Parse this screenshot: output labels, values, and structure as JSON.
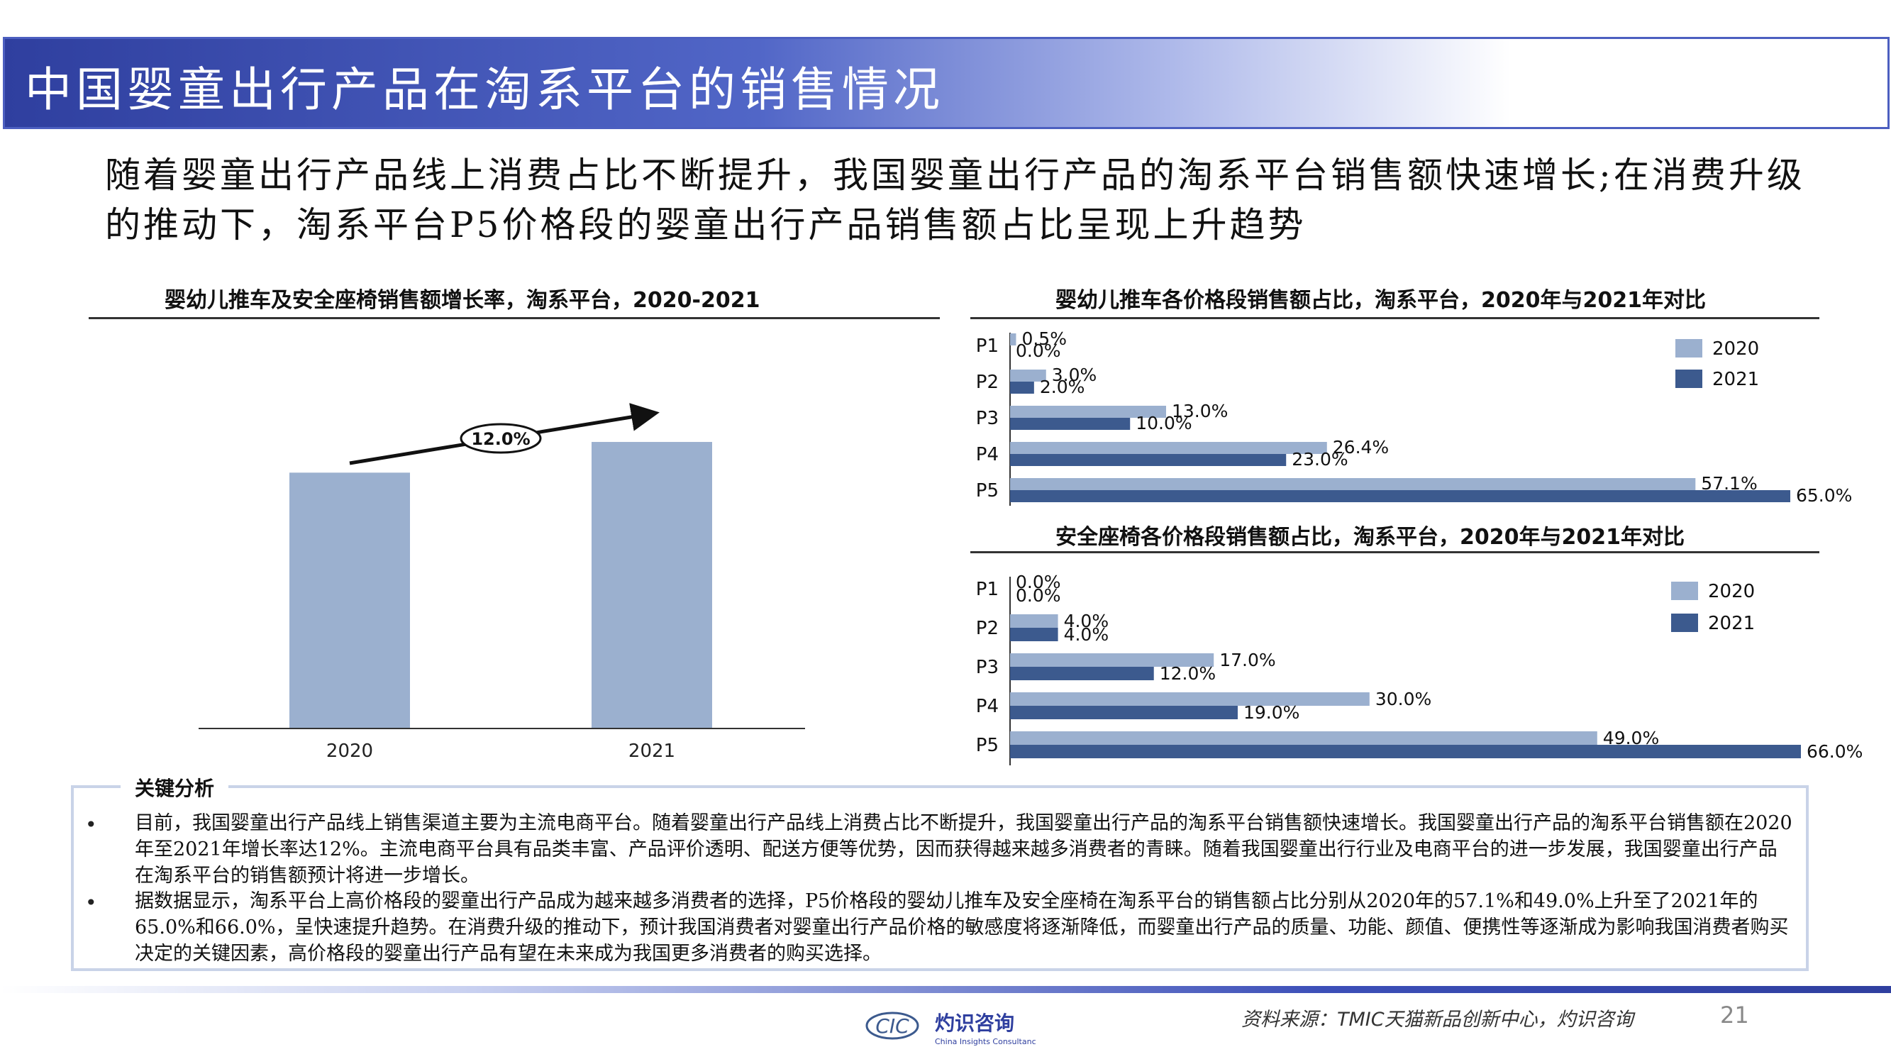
{
  "header": {
    "title": "中国婴童出行产品在淘系平台的销售情况"
  },
  "subtitle": "随着婴童出行产品线上消费占比不断提升，我国婴童出行产品的淘系平台销售额快速增长;在消费升级的推动下，淘系平台P5价格段的婴童出行产品销售额占比呈现上升趋势",
  "chart_data": [
    {
      "type": "bar",
      "title": "婴幼儿推车及安全座椅销售额增长率，淘系平台，2020-2021",
      "categories": [
        "2020",
        "2021"
      ],
      "values": [
        100,
        112
      ],
      "annotation": "12.0%",
      "color": "#9bb0cf",
      "grid": false
    },
    {
      "type": "bar",
      "orientation": "horizontal",
      "title": "婴幼儿推车各价格段销售额占比，淘系平台，2020年与2021年对比",
      "categories": [
        "P1",
        "P2",
        "P3",
        "P4",
        "P5"
      ],
      "series": [
        {
          "name": "2020",
          "values": [
            0.5,
            3.0,
            13.0,
            26.4,
            57.1
          ],
          "labels": [
            "0.5%",
            "3.0%",
            "13.0%",
            "26.4%",
            "57.1%"
          ],
          "color": "#9bb0cf"
        },
        {
          "name": "2021",
          "values": [
            0.0,
            2.0,
            10.0,
            23.0,
            65.0
          ],
          "labels": [
            "0.0%",
            "2.0%",
            "10.0%",
            "23.0%",
            "65.0%"
          ],
          "color": "#3c5a8e"
        }
      ],
      "xlim": [
        0,
        65
      ],
      "legend": "top-right",
      "grid": false
    },
    {
      "type": "bar",
      "orientation": "horizontal",
      "title": "安全座椅各价格段销售额占比，淘系平台，2020年与2021年对比",
      "categories": [
        "P1",
        "P2",
        "P3",
        "P4",
        "P5"
      ],
      "series": [
        {
          "name": "2020",
          "values": [
            0.0,
            4.0,
            17.0,
            30.0,
            49.0
          ],
          "labels": [
            "0.0%",
            "4.0%",
            "17.0%",
            "30.0%",
            "49.0%"
          ],
          "color": "#9bb0cf"
        },
        {
          "name": "2021",
          "values": [
            0.0,
            4.0,
            12.0,
            19.0,
            66.0
          ],
          "labels": [
            "0.0%",
            "4.0%",
            "12.0%",
            "19.0%",
            "66.0%"
          ],
          "color": "#3c5a8e"
        }
      ],
      "xlim": [
        0,
        66
      ],
      "legend": "top-right",
      "grid": false
    }
  ],
  "analysis": {
    "label": "关键分析",
    "bullet": "•",
    "paragraphs": [
      "目前，我国婴童出行产品线上销售渠道主要为主流电商平台。随着婴童出行产品线上消费占比不断提升，我国婴童出行产品的淘系平台销售额快速增长。我国婴童出行产品的淘系平台销售额在2020年至2021年增长率达12%。主流电商平台具有品类丰富、产品评价透明、配送方便等优势，因而获得越来越多消费者的青睐。随着我国婴童出行行业及电商平台的进一步发展，我国婴童出行产品在淘系平台的销售额预计将进一步增长。",
      "据数据显示，淘系平台上高价格段的婴童出行产品成为越来越多消费者的选择，P5价格段的婴幼儿推车及安全座椅在淘系平台的销售额占比分别从2020年的57.1%和49.0%上升至了2021年的65.0%和66.0%，呈快速提升趋势。在消费升级的推动下，预计我国消费者对婴童出行产品价格的敏感度将逐渐降低，而婴童出行产品的质量、功能、颜值、便携性等逐渐成为影响我国消费者购买决定的关键因素，高价格段的婴童出行产品有望在未来成为我国更多消费者的购买选择。"
    ]
  },
  "footer": {
    "logo_mark": "CIC",
    "logo_name": "灼识咨询",
    "logo_sub": "China Insights Consultancy",
    "source": "资料来源：TMIC天猫新品创新中心，灼识咨询",
    "page": "21"
  },
  "colors": {
    "primary": "#2f3f9f",
    "bar_light": "#9bb0cf",
    "bar_dark": "#3c5a8e"
  }
}
